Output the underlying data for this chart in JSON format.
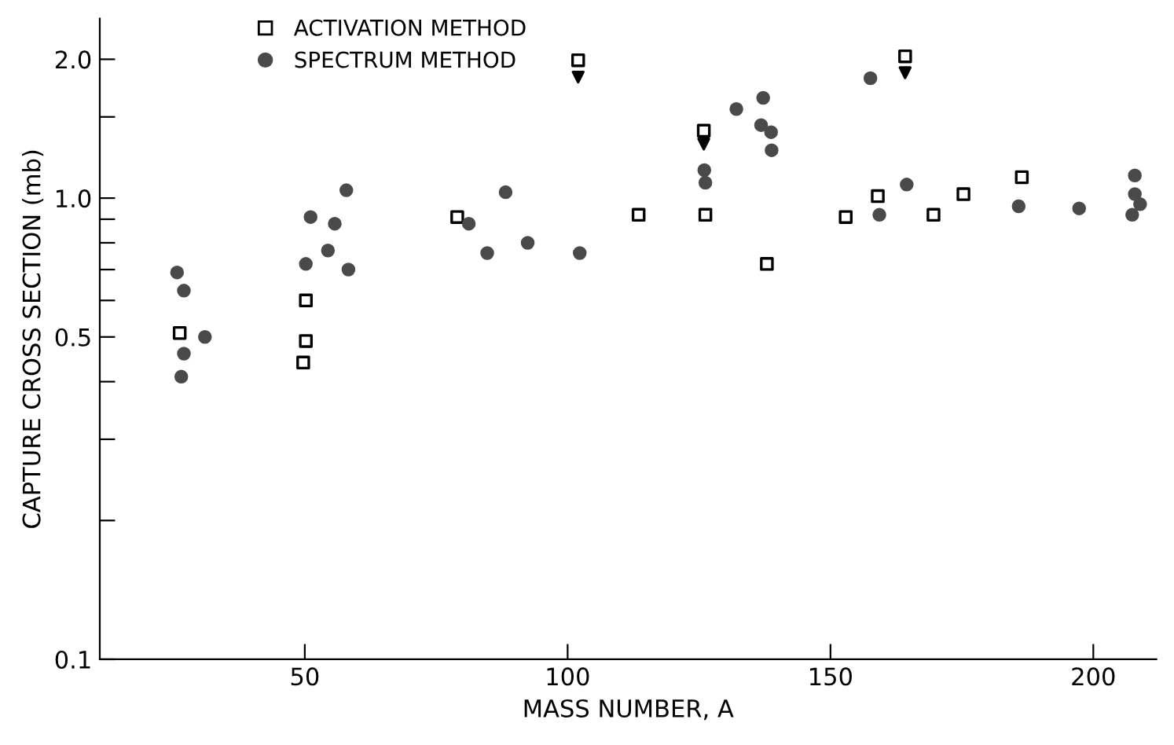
{
  "chart_data": {
    "type": "scatter",
    "xlabel": "MASS NUMBER, A",
    "ylabel": "CAPTURE CROSS SECTION (mb)",
    "log": "y",
    "grid": false,
    "legend": "top",
    "xlim": [
      11,
      212
    ],
    "xticks": [
      50,
      100,
      150,
      200
    ],
    "ylim": [
      0.1,
      2.45
    ],
    "yticks": [
      0.1,
      {
        "value": 0.2,
        "label": null
      },
      {
        "value": 0.3,
        "label": null
      },
      {
        "value": 0.4,
        "label": null
      },
      0.5,
      {
        "value": 0.6,
        "label": null
      },
      {
        "value": 0.7,
        "label": null
      },
      {
        "value": 0.8,
        "label": null
      },
      {
        "value": 0.9,
        "label": null
      },
      {
        "value": 1.0,
        "label": "1.0"
      },
      {
        "value": 1.5,
        "label": null
      },
      {
        "value": 2.0,
        "label": "2.0"
      }
    ],
    "series": [
      {
        "name": "ACTIVATION METHOD",
        "color": "#000000",
        "marker": "square",
        "x": [
          26.2,
          50.2,
          50.2,
          49.7,
          79.0,
          102.0,
          125.9,
          113.5,
          126.2,
          137.9,
          152.9,
          159.0,
          164.2,
          169.6,
          175.3,
          186.4
        ],
        "values": [
          0.51,
          0.6,
          0.49,
          0.44,
          0.91,
          1.99,
          1.4,
          0.92,
          0.92,
          0.72,
          0.91,
          1.01,
          2.03,
          0.92,
          1.02,
          1.11
        ]
      },
      {
        "name": "SPECTRUM METHOD",
        "color": "#4a4a4a",
        "marker": "circle",
        "x": [
          25.7,
          27.0,
          27.0,
          26.5,
          31.0,
          50.2,
          51.1,
          54.4,
          55.7,
          57.9,
          58.3,
          81.2,
          84.7,
          88.2,
          92.4,
          102.3,
          132.1,
          137.2,
          136.8,
          138.7,
          138.8,
          126.0,
          126.2,
          157.6,
          164.5,
          159.3,
          185.8,
          197.3,
          207.9,
          207.9,
          208.9,
          207.4
        ],
        "values": [
          0.69,
          0.63,
          0.46,
          0.41,
          0.5,
          0.72,
          0.91,
          0.77,
          0.88,
          1.04,
          0.7,
          0.88,
          0.76,
          1.03,
          0.8,
          0.76,
          1.56,
          1.65,
          1.44,
          1.39,
          1.27,
          1.15,
          1.08,
          1.82,
          1.07,
          0.92,
          0.96,
          0.95,
          1.12,
          1.02,
          0.97,
          0.92
        ]
      },
      {
        "color": "#000000",
        "marker": "triangle",
        "x": [
          102.0,
          125.9,
          164.2
        ],
        "values": [
          1.83,
          1.31,
          1.87
        ]
      }
    ]
  }
}
